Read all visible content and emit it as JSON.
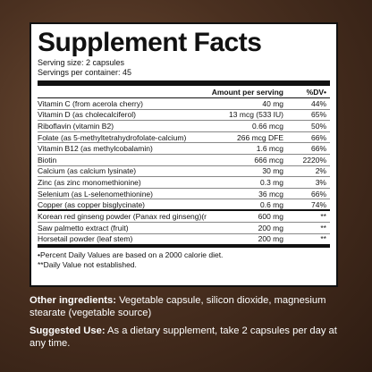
{
  "facts": {
    "title": "Supplement Facts",
    "serving_size": "Serving size: 2 capsules",
    "servings_per_container": "Servings per container: 45",
    "header_amount": "Amount per serving",
    "header_dv": "%DV•",
    "rows": [
      {
        "name": "Vitamin C (from acerola cherry)",
        "amount": "40 mg",
        "dv": "44%"
      },
      {
        "name": "Vitamin D (as cholecalciferol)",
        "amount": "13 mcg (533 IU)",
        "dv": "65%"
      },
      {
        "name": "Riboflavin (vitamin B2)",
        "amount": "0.66 mcg",
        "dv": "50%"
      },
      {
        "name": "Folate (as 5-methyltetrahydrofolate-calcium)",
        "amount": "266 mcg DFE",
        "dv": "66%"
      },
      {
        "name": "Vitamin B12 (as methylcobalamin)",
        "amount": "1.6 mcg",
        "dv": "66%"
      },
      {
        "name": "Biotin",
        "amount": "666 mcg",
        "dv": "2220%"
      },
      {
        "name": "Calcium (as calcium lysinate)",
        "amount": "30 mg",
        "dv": "2%"
      },
      {
        "name": "Zinc (as zinc monomethionine)",
        "amount": "0.3 mg",
        "dv": "3%"
      },
      {
        "name": "Selenium (as L-selenomethionine)",
        "amount": "36 mcg",
        "dv": "66%"
      },
      {
        "name": "Copper (as copper bisglycinate)",
        "amount": "0.6 mg",
        "dv": "74%"
      },
      {
        "name": "Korean red ginseng powder (Panax red ginseng)(root)",
        "amount": "600 mg",
        "dv": "**"
      },
      {
        "name": "Saw palmetto extract (fruit)",
        "amount": "200 mg",
        "dv": "**"
      },
      {
        "name": "Horsetail powder (leaf stem)",
        "amount": "200 mg",
        "dv": "**"
      }
    ],
    "footnote_1": "•Percent Daily Values are based on a 2000 calorie diet.",
    "footnote_2": "**Daily Value not established."
  },
  "other_ingredients": {
    "label": "Other ingredients:",
    "text": " Vegetable capsule, silicon dioxide, magnesium stearate (vegetable source)"
  },
  "suggested_use": {
    "label": "Suggested Use:",
    "text": " As a dietary supplement, take 2 capsules per day at any time."
  }
}
